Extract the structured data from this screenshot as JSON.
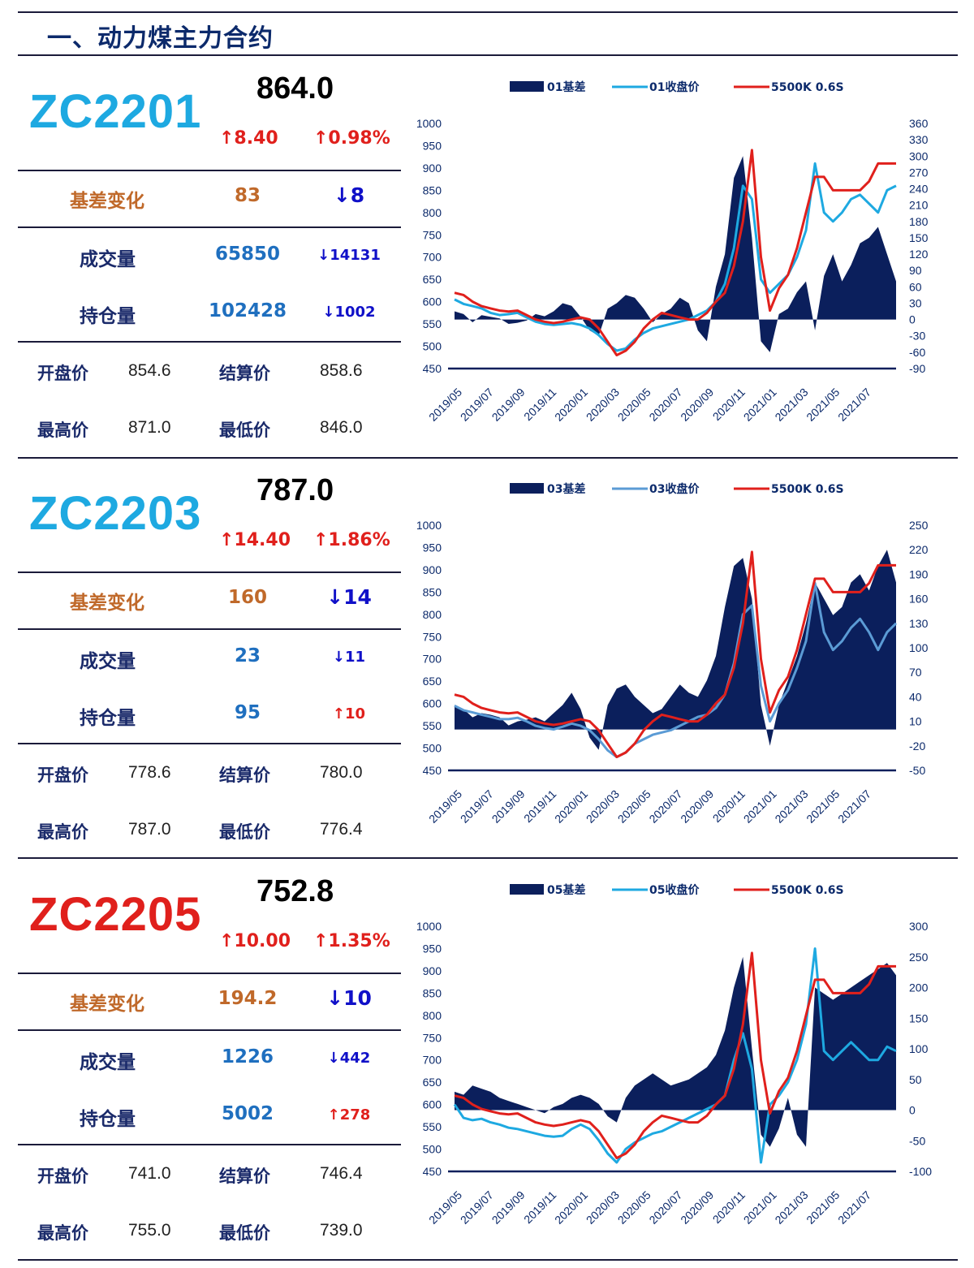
{
  "page_title": "一、动力煤主力合约",
  "colors": {
    "navy": "#0b1f5c",
    "red": "#e0201c",
    "cyan": "#1ea9e1",
    "steel": "#5b9bd5",
    "brown": "#c0692a",
    "blue_val": "#1f6fbf",
    "down_blue": "#1010c8"
  },
  "panels": [
    {
      "code": "ZC2201",
      "code_color": "#1ea9e1",
      "price": "864.0",
      "change": "↑8.40",
      "change_pct": "↑0.98%",
      "basis_label": "基差变化",
      "basis_value": "83",
      "basis_delta": "↓8",
      "volume_label": "成交量",
      "volume_value": "65850",
      "volume_delta": "↓14131",
      "oi_label": "持仓量",
      "oi_value": "102428",
      "oi_delta": "↓1002",
      "open_label": "开盘价",
      "open_value": "854.6",
      "settle_label": "结算价",
      "settle_value": "858.6",
      "high_label": "最高价",
      "high_value": "871.0",
      "low_label": "最低价",
      "low_value": "846.0"
    },
    {
      "code": "ZC2203",
      "code_color": "#1ea9e1",
      "price": "787.0",
      "change": "↑14.40",
      "change_pct": "↑1.86%",
      "basis_label": "基差变化",
      "basis_value": "160",
      "basis_delta": "↓14",
      "volume_label": "成交量",
      "volume_value": "23",
      "volume_delta": "↓11",
      "oi_label": "持仓量",
      "oi_value": "95",
      "oi_delta": "↑10",
      "open_label": "开盘价",
      "open_value": "778.6",
      "settle_label": "结算价",
      "settle_value": "780.0",
      "high_label": "最高价",
      "high_value": "787.0",
      "low_label": "最低价",
      "low_value": "776.4"
    },
    {
      "code": "ZC2205",
      "code_color": "#e0201c",
      "price": "752.8",
      "change": "↑10.00",
      "change_pct": "↑1.35%",
      "basis_label": "基差变化",
      "basis_value": "194.2",
      "basis_delta": "↓10",
      "volume_label": "成交量",
      "volume_value": "1226",
      "volume_delta": "↓442",
      "oi_label": "持仓量",
      "oi_value": "5002",
      "oi_delta": "↑278",
      "open_label": "开盘价",
      "open_value": "741.0",
      "settle_label": "结算价",
      "settle_value": "746.4",
      "high_label": "最高价",
      "high_value": "755.0",
      "low_label": "最低价",
      "low_value": "739.0"
    }
  ],
  "chart_data": [
    {
      "type": "area+line",
      "x_labels": [
        "2019/05",
        "2019/07",
        "2019/09",
        "2019/11",
        "2020/01",
        "2020/03",
        "2020/05",
        "2020/07",
        "2020/09",
        "2020/11",
        "2021/01",
        "2021/03",
        "2021/05",
        "2021/07"
      ],
      "left_axis": {
        "ticks": [
          1000,
          950,
          900,
          850,
          800,
          750,
          700,
          650,
          600,
          550,
          500,
          450
        ],
        "range": [
          450,
          1000
        ]
      },
      "right_axis": {
        "ticks": [
          360,
          330,
          300,
          270,
          240,
          210,
          180,
          150,
          120,
          90,
          60,
          30,
          0,
          -30,
          -60,
          -90
        ],
        "range": [
          -90,
          360
        ]
      },
      "legend": [
        "01基差",
        "01收盘价",
        "5500K 0.6S"
      ],
      "series": [
        {
          "name": "01基差",
          "axis": "right",
          "kind": "area",
          "color": "#0b1f5c",
          "values": [
            15,
            10,
            -5,
            8,
            5,
            2,
            -8,
            -6,
            -2,
            10,
            6,
            15,
            30,
            25,
            5,
            -20,
            -30,
            20,
            30,
            45,
            40,
            20,
            -5,
            10,
            20,
            40,
            30,
            -20,
            -40,
            60,
            120,
            260,
            300,
            150,
            -40,
            -60,
            10,
            20,
            50,
            70,
            -20,
            80,
            120,
            70,
            100,
            140,
            150,
            170,
            120,
            70
          ]
        },
        {
          "name": "01收盘价",
          "axis": "left",
          "kind": "line",
          "color": "#1ea9e1",
          "values": [
            605,
            595,
            590,
            585,
            575,
            570,
            572,
            575,
            565,
            555,
            550,
            548,
            550,
            552,
            548,
            540,
            525,
            505,
            490,
            495,
            515,
            530,
            540,
            545,
            550,
            555,
            560,
            570,
            580,
            600,
            640,
            720,
            860,
            830,
            650,
            620,
            640,
            660,
            700,
            760,
            910,
            800,
            780,
            800,
            830,
            840,
            820,
            800,
            850,
            860
          ]
        },
        {
          "name": "5500K 0.6S",
          "axis": "left",
          "kind": "line",
          "color": "#e0201c",
          "values": [
            620,
            615,
            600,
            590,
            585,
            580,
            578,
            580,
            570,
            560,
            555,
            552,
            555,
            560,
            565,
            560,
            540,
            510,
            480,
            490,
            510,
            540,
            560,
            575,
            570,
            565,
            560,
            560,
            575,
            600,
            620,
            680,
            780,
            940,
            700,
            580,
            630,
            660,
            720,
            800,
            880,
            880,
            850,
            850,
            850,
            850,
            870,
            910,
            910,
            910
          ]
        }
      ]
    },
    {
      "type": "area+line",
      "x_labels": [
        "2019/05",
        "2019/07",
        "2019/09",
        "2019/11",
        "2020/01",
        "2020/03",
        "2020/05",
        "2020/07",
        "2020/09",
        "2020/11",
        "2021/01",
        "2021/03",
        "2021/05",
        "2021/07"
      ],
      "left_axis": {
        "ticks": [
          1000,
          950,
          900,
          850,
          800,
          750,
          700,
          650,
          600,
          550,
          500,
          450
        ],
        "range": [
          450,
          1000
        ]
      },
      "right_axis": {
        "ticks": [
          250,
          220,
          190,
          160,
          130,
          100,
          70,
          40,
          10,
          -20,
          -50
        ],
        "range": [
          -50,
          250
        ]
      },
      "legend": [
        "03基差",
        "03收盘价",
        "5500K 0.6S"
      ],
      "series": [
        {
          "name": "03基差",
          "axis": "right",
          "kind": "area",
          "color": "#0b1f5c",
          "values": [
            30,
            25,
            15,
            20,
            18,
            15,
            5,
            10,
            12,
            15,
            10,
            20,
            30,
            45,
            25,
            -10,
            -25,
            30,
            50,
            55,
            40,
            30,
            20,
            25,
            40,
            55,
            45,
            40,
            60,
            90,
            150,
            200,
            210,
            160,
            30,
            -20,
            30,
            60,
            90,
            130,
            180,
            160,
            140,
            150,
            180,
            190,
            170,
            200,
            220,
            180
          ]
        },
        {
          "name": "03收盘价",
          "axis": "left",
          "kind": "line",
          "color": "#5b9bd5",
          "values": [
            595,
            585,
            580,
            575,
            570,
            565,
            565,
            568,
            560,
            550,
            545,
            542,
            548,
            555,
            550,
            540,
            520,
            495,
            480,
            490,
            510,
            520,
            530,
            535,
            540,
            550,
            560,
            570,
            575,
            590,
            620,
            690,
            800,
            820,
            640,
            560,
            600,
            630,
            680,
            740,
            870,
            760,
            720,
            740,
            770,
            790,
            760,
            720,
            760,
            780
          ]
        },
        {
          "name": "5500K 0.6S",
          "axis": "left",
          "kind": "line",
          "color": "#e0201c",
          "values": [
            620,
            615,
            600,
            590,
            585,
            580,
            578,
            580,
            570,
            560,
            555,
            552,
            555,
            560,
            565,
            560,
            540,
            510,
            480,
            490,
            510,
            540,
            560,
            575,
            570,
            565,
            560,
            560,
            575,
            600,
            620,
            680,
            780,
            940,
            700,
            580,
            630,
            660,
            720,
            800,
            880,
            880,
            850,
            850,
            850,
            850,
            870,
            910,
            910,
            910
          ]
        }
      ]
    },
    {
      "type": "area+line",
      "x_labels": [
        "2019/05",
        "2019/07",
        "2019/09",
        "2019/11",
        "2020/01",
        "2020/03",
        "2020/05",
        "2020/07",
        "2020/09",
        "2020/11",
        "2021/01",
        "2021/03",
        "2021/05",
        "2021/07"
      ],
      "left_axis": {
        "ticks": [
          1000,
          950,
          900,
          850,
          800,
          750,
          700,
          650,
          600,
          550,
          500,
          450
        ],
        "range": [
          450,
          1000
        ]
      },
      "right_axis": {
        "ticks": [
          300,
          250,
          200,
          150,
          100,
          50,
          0,
          -50,
          -100
        ],
        "range": [
          -100,
          300
        ]
      },
      "legend": [
        "05基差",
        "05收盘价",
        "5500K 0.6S"
      ],
      "series": [
        {
          "name": "05基差",
          "axis": "right",
          "kind": "area",
          "color": "#0b1f5c",
          "values": [
            30,
            25,
            40,
            35,
            30,
            20,
            15,
            10,
            5,
            0,
            -5,
            5,
            10,
            20,
            25,
            20,
            10,
            -10,
            -20,
            20,
            40,
            50,
            60,
            50,
            40,
            45,
            50,
            60,
            70,
            90,
            130,
            200,
            250,
            100,
            -40,
            -60,
            -30,
            20,
            -40,
            -60,
            200,
            190,
            180,
            190,
            200,
            210,
            220,
            230,
            240,
            220
          ]
        },
        {
          "name": "05收盘价",
          "axis": "left",
          "kind": "line",
          "color": "#1ea9e1",
          "values": [
            600,
            570,
            565,
            568,
            560,
            555,
            548,
            545,
            540,
            535,
            530,
            528,
            530,
            545,
            555,
            545,
            520,
            490,
            470,
            500,
            515,
            525,
            535,
            540,
            550,
            560,
            570,
            580,
            590,
            600,
            620,
            700,
            760,
            680,
            470,
            600,
            620,
            650,
            700,
            780,
            950,
            720,
            700,
            720,
            740,
            720,
            700,
            700,
            730,
            720
          ]
        },
        {
          "name": "5500K 0.6S",
          "axis": "left",
          "kind": "line",
          "color": "#e0201c",
          "values": [
            620,
            615,
            600,
            590,
            585,
            580,
            578,
            580,
            570,
            560,
            555,
            552,
            555,
            560,
            565,
            560,
            540,
            510,
            480,
            490,
            510,
            540,
            560,
            575,
            570,
            565,
            560,
            560,
            575,
            600,
            620,
            680,
            780,
            940,
            700,
            580,
            630,
            660,
            720,
            800,
            880,
            880,
            850,
            850,
            850,
            850,
            870,
            910,
            910,
            910
          ]
        }
      ]
    }
  ]
}
